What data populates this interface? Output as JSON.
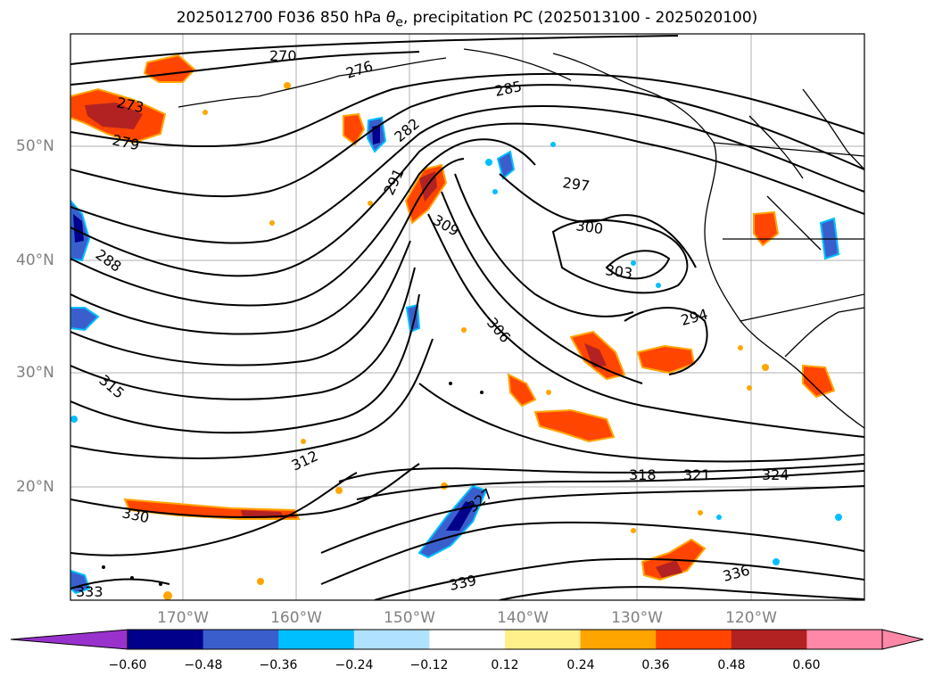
{
  "title": {
    "prefix": "2025012700 F036 850 hPa ",
    "theta": "θ",
    "theta_sub": "e",
    "suffix": ", precipitation PC (2025013100 - 2025020100)"
  },
  "map": {
    "lat_labels": [
      "50°N",
      "40°N",
      "30°N",
      "20°N"
    ],
    "lon_labels": [
      "170°W",
      "160°W",
      "150°W",
      "140°W",
      "130°W",
      "120°W"
    ],
    "contour_labels": [
      "270",
      "276",
      "273",
      "279",
      "282",
      "285",
      "288",
      "291",
      "294",
      "297",
      "300",
      "303",
      "306",
      "309",
      "312",
      "315",
      "318",
      "321",
      "324",
      "327",
      "330",
      "333",
      "336",
      "339"
    ],
    "land_color": "#000000",
    "contour_color": "#000000"
  },
  "colorbar": {
    "ticks": [
      "−0.60",
      "−0.48",
      "−0.36",
      "−0.24",
      "−0.12",
      "0.12",
      "0.24",
      "0.36",
      "0.48",
      "0.60"
    ],
    "colors": [
      "#9932cc",
      "#00008b",
      "#3a5fcd",
      "#00bfff",
      "#b0e2ff",
      "#ffffff",
      "#fff08c",
      "#ffa500",
      "#ff4500",
      "#b22222",
      "#ff88a8",
      "#ff88a8"
    ]
  }
}
